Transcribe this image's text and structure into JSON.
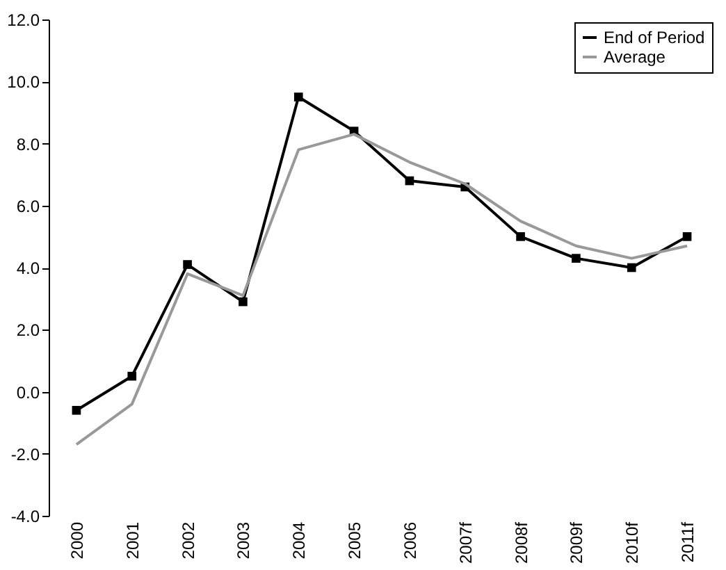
{
  "chart_data": {
    "type": "line",
    "categories": [
      "2000",
      "2001",
      "2002",
      "2003",
      "2004",
      "2005",
      "2006",
      "2007f",
      "2008f",
      "2009f",
      "2010f",
      "2011f"
    ],
    "series": [
      {
        "name": "End of Period",
        "color": "#000000",
        "values": [
          -0.6,
          0.5,
          4.1,
          2.9,
          9.5,
          8.4,
          6.8,
          6.6,
          5.0,
          4.3,
          4.0,
          5.0
        ]
      },
      {
        "name": "Average",
        "color": "#999999",
        "marker": "none",
        "values": [
          -1.7,
          -0.4,
          3.8,
          3.1,
          7.8,
          8.3,
          7.4,
          6.7,
          5.5,
          4.7,
          4.3,
          4.7
        ]
      }
    ],
    "ylim": [
      -4,
      12
    ],
    "yticks": [
      {
        "value": -4,
        "label": "-4.0"
      },
      {
        "value": -2,
        "label": "-2.0"
      },
      {
        "value": 0,
        "label": "0.0"
      },
      {
        "value": 2,
        "label": "2.0"
      },
      {
        "value": 4,
        "label": "4.0"
      },
      {
        "value": 6,
        "label": "6.0"
      },
      {
        "value": 8,
        "label": "8.0"
      },
      {
        "value": 10,
        "label": "10.0"
      },
      {
        "value": 12,
        "label": "12.0"
      }
    ],
    "grid": false,
    "legend": "top right",
    "marker": "square",
    "line_style": "solid"
  }
}
